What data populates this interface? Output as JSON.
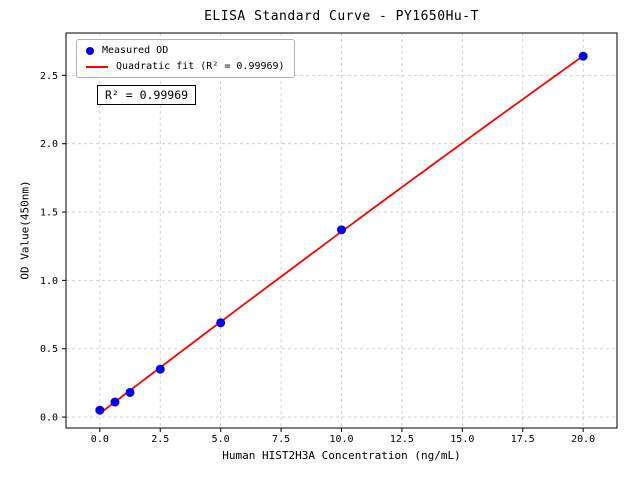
{
  "chart_data": {
    "type": "scatter",
    "title": "ELISA Standard Curve - PY1650Hu-T",
    "xlabel": "Human HIST2H3A Concentration (ng/mL)",
    "ylabel": "OD Value(450nm)",
    "xlim": [
      -1.4,
      21.4
    ],
    "ylim": [
      -0.08,
      2.81
    ],
    "grid": true,
    "xticks": [
      0.0,
      2.5,
      5.0,
      7.5,
      10.0,
      12.5,
      15.0,
      17.5,
      20.0
    ],
    "xtick_labels": [
      "0.0",
      "2.5",
      "5.0",
      "7.5",
      "10.0",
      "12.5",
      "15.0",
      "17.5",
      "20.0"
    ],
    "yticks": [
      0.0,
      0.5,
      1.0,
      1.5,
      2.0,
      2.5
    ],
    "ytick_labels": [
      "0.0",
      "0.5",
      "1.0",
      "1.5",
      "2.0",
      "2.5"
    ],
    "legend": {
      "position": "top-left",
      "entries": [
        {
          "label": "Measured OD",
          "marker": "dot",
          "color": "#0000ee"
        },
        {
          "label": "Quadratic fit (R² = 0.99969)",
          "marker": "line",
          "color": "#ff0000"
        }
      ]
    },
    "annotation": "R² = 0.99969",
    "series": [
      {
        "name": "Measured OD",
        "type": "scatter",
        "color": "#0000ee",
        "x": [
          0,
          0.625,
          1.25,
          2.5,
          5,
          10,
          20
        ],
        "y": [
          0.05,
          0.11,
          0.18,
          0.35,
          0.69,
          1.37,
          2.64
        ]
      },
      {
        "name": "Quadratic fit",
        "type": "line",
        "color": "#ff0000",
        "fit": "quadratic",
        "r_squared": "0.99969"
      }
    ],
    "colors": {
      "scatter": "#0000ee",
      "line": "#ff0000",
      "grid": "#c8c8c8",
      "legend_border": "#b0b0b0"
    }
  }
}
